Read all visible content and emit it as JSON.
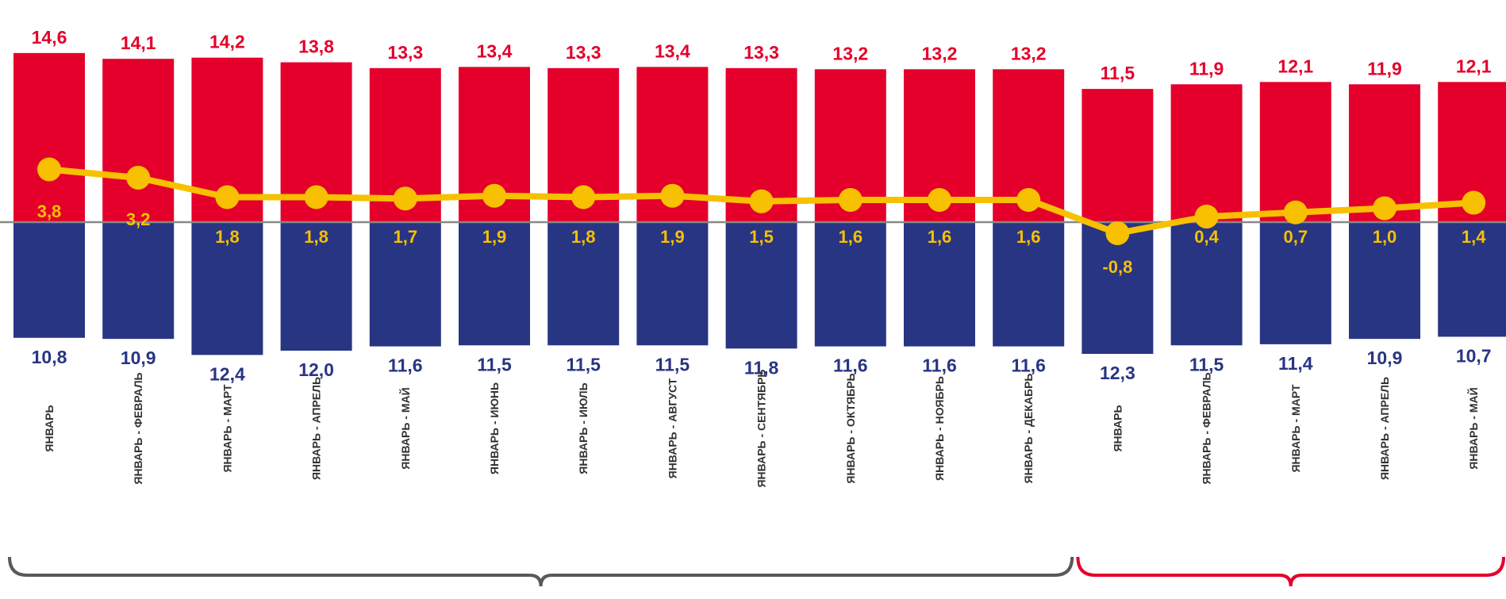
{
  "chart_data": {
    "type": "bar",
    "categories": [
      "ЯНВАРЬ",
      "ЯНВАРЬ - ФЕВРАЛЬ",
      "ЯНВАРЬ - МАРТ",
      "ЯНВАРЬ - АПРЕЛЬ",
      "ЯНВАРЬ - МАЙ",
      "ЯНВАРЬ - ИЮНЬ",
      "ЯНВАРЬ - ИЮЛЬ",
      "ЯНВАРЬ - АВГУСТ",
      "ЯНВАРЬ - СЕНТЯБРЬ",
      "ЯНВАРЬ - ОКТЯБРЬ",
      "ЯНВАРЬ - НОЯБРЬ",
      "ЯНВАРЬ - ДЕКАБРЬ",
      "ЯНВАРЬ",
      "ЯНВАРЬ - ФЕВРАЛЬ",
      "ЯНВАРЬ - МАРТ",
      "ЯНВАРЬ - АПРЕЛЬ",
      "ЯНВАРЬ - МАЙ"
    ],
    "series": [
      {
        "kind": "bar-up",
        "values": [
          14.6,
          14.1,
          14.2,
          13.8,
          13.3,
          13.4,
          13.3,
          13.4,
          13.3,
          13.2,
          13.2,
          13.2,
          11.5,
          11.9,
          12.1,
          11.9,
          12.1
        ],
        "labels": [
          "14,6",
          "14,1",
          "14,2",
          "13,8",
          "13,3",
          "13,4",
          "13,3",
          "13,4",
          "13,3",
          "13,2",
          "13,2",
          "13,2",
          "11,5",
          "11,9",
          "12,1",
          "11,9",
          "12,1"
        ],
        "color": "#e4002b"
      },
      {
        "kind": "bar-down",
        "values": [
          10.8,
          10.9,
          12.4,
          12.0,
          11.6,
          11.5,
          11.5,
          11.5,
          11.8,
          11.6,
          11.6,
          11.6,
          12.3,
          11.5,
          11.4,
          10.9,
          10.7
        ],
        "labels": [
          "10,8",
          "10,9",
          "12,4",
          "12,0",
          "11,6",
          "11,5",
          "11,5",
          "11,5",
          "11,8",
          "11,6",
          "11,6",
          "11,6",
          "12,3",
          "11,5",
          "11,4",
          "10,9",
          "10,7"
        ],
        "color": "#283583"
      },
      {
        "kind": "line",
        "values": [
          3.8,
          3.2,
          1.8,
          1.8,
          1.7,
          1.9,
          1.8,
          1.9,
          1.5,
          1.6,
          1.6,
          1.6,
          -0.8,
          0.4,
          0.7,
          1.0,
          1.4
        ],
        "labels": [
          "3,8",
          "3,2",
          "1,8",
          "1,8",
          "1,7",
          "1,9",
          "1,8",
          "1,9",
          "1,5",
          "1,6",
          "1,6",
          "1,6",
          "-0,8",
          "0,4",
          "0,7",
          "1,0",
          "1,4"
        ],
        "color": "#f7c000"
      }
    ],
    "groups": [
      {
        "from": 0,
        "to": 11,
        "color": "#595959"
      },
      {
        "from": 12,
        "to": 16,
        "color": "#e4002b"
      }
    ],
    "baseline_color": "#888888",
    "grid": false,
    "legend": "none"
  }
}
